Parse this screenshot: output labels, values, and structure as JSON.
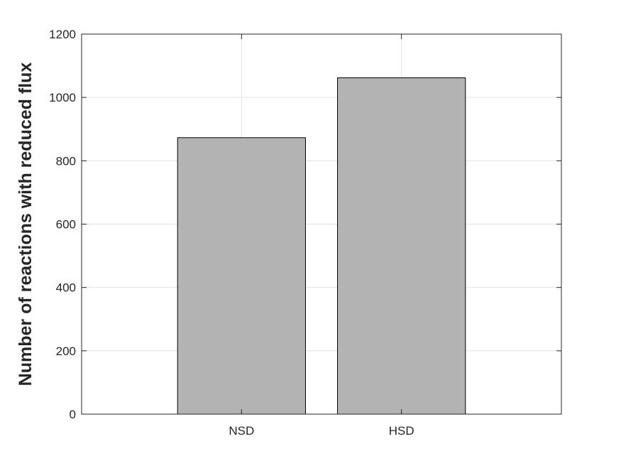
{
  "chart_data": {
    "type": "bar",
    "categories": [
      "NSD",
      "HSD"
    ],
    "values": [
      873,
      1062
    ],
    "title": "",
    "xlabel": "",
    "ylabel": "Number of reactions with reduced flux",
    "ylim": [
      0,
      1200
    ],
    "xlim": [
      0,
      3
    ],
    "yticks": [
      0,
      200,
      400,
      600,
      800,
      1000,
      1200
    ],
    "ytick_labels": [
      "0",
      "200",
      "400",
      "600",
      "800",
      "1000",
      "1200"
    ],
    "grid": true,
    "bar_color": "#b3b3b3",
    "bar_edge_color": "#000000",
    "bar_width": 0.8
  }
}
